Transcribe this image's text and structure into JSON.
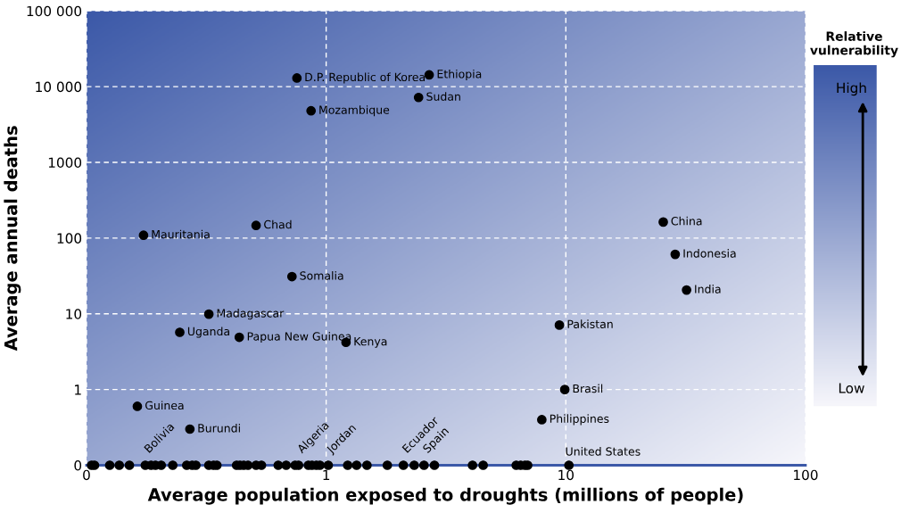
{
  "chart_data": {
    "type": "scatter",
    "xlabel": "Average population exposed to droughts (millions of people)",
    "ylabel": "Average annual deaths",
    "clabel": "Relative vulnerability",
    "log": "xy",
    "xlim": [
      0.1,
      100
    ],
    "ylim": [
      0.1,
      100000
    ],
    "xticks": [
      {
        "value": 0.1,
        "label": "0"
      },
      1,
      10,
      100
    ],
    "yticks": [
      {
        "value": 0.1,
        "label": "0"
      },
      1,
      10,
      100,
      1000,
      {
        "value": 10000,
        "label": "10 000"
      },
      {
        "value": 100000,
        "label": "100 000"
      }
    ],
    "grid": true,
    "marker": "circle",
    "series": [
      {
        "color": "#000000",
        "x": [
          0.755,
          2.69,
          2.43,
          0.865,
          25.5,
          28.6,
          31.9,
          0.51,
          0.173,
          0.72,
          0.324,
          0.245,
          0.434,
          1.21,
          9.4,
          9.9,
          7.94,
          0.163,
          0.27,
          10.3,
          0.105,
          0.108,
          0.125,
          0.137,
          0.151,
          0.176,
          0.186,
          0.194,
          0.205,
          0.229,
          0.262,
          0.276,
          0.286,
          0.324,
          0.339,
          0.35,
          0.423,
          0.437,
          0.453,
          0.472,
          0.51,
          0.537,
          0.631,
          0.681,
          0.742,
          0.767,
          0.843,
          0.873,
          0.91,
          0.942,
          1.02,
          1.23,
          1.34,
          1.48,
          1.8,
          2.1,
          2.33,
          2.56,
          2.83,
          4.08,
          4.52,
          6.21,
          6.48,
          6.75,
          6.93
        ],
        "values": [
          13000,
          14300,
          7200,
          4800,
          163,
          61,
          20.6,
          147,
          109,
          31,
          9.9,
          5.7,
          4.9,
          4.2,
          7.1,
          1.0,
          0.4,
          0.6,
          0.3,
          0.1,
          0.1,
          0.1,
          0.1,
          0.1,
          0.1,
          0.1,
          0.1,
          0.1,
          0.1,
          0.1,
          0.1,
          0.1,
          0.1,
          0.1,
          0.1,
          0.1,
          0.1,
          0.1,
          0.1,
          0.1,
          0.1,
          0.1,
          0.1,
          0.1,
          0.1,
          0.1,
          0.1,
          0.1,
          0.1,
          0.1,
          0.1,
          0.1,
          0.1,
          0.1,
          0.1,
          0.1,
          0.1,
          0.1,
          0.1,
          0.1,
          0.1,
          0.1,
          0.1,
          0.1,
          0.1
        ]
      }
    ],
    "annotations": [
      {
        "text": "D.P. Republic of Korea",
        "x": 0.755,
        "y": 13000
      },
      {
        "text": "Ethiopia",
        "x": 2.69,
        "y": 14300
      },
      {
        "text": "Sudan",
        "x": 2.43,
        "y": 7200
      },
      {
        "text": "Mozambique",
        "x": 0.865,
        "y": 4800
      },
      {
        "text": "China",
        "x": 25.5,
        "y": 163
      },
      {
        "text": "Indonesia",
        "x": 28.6,
        "y": 61
      },
      {
        "text": "India",
        "x": 31.9,
        "y": 20.6
      },
      {
        "text": "Chad",
        "x": 0.51,
        "y": 147
      },
      {
        "text": "Mauritania",
        "x": 0.173,
        "y": 109
      },
      {
        "text": "Somalia",
        "x": 0.72,
        "y": 31
      },
      {
        "text": "Madagascar",
        "x": 0.324,
        "y": 9.9
      },
      {
        "text": "Uganda",
        "x": 0.245,
        "y": 5.7
      },
      {
        "text": "Papua New Guinea",
        "x": 0.434,
        "y": 4.9
      },
      {
        "text": "Kenya",
        "x": 1.21,
        "y": 4.2
      },
      {
        "text": "Pakistan",
        "x": 9.4,
        "y": 7.1
      },
      {
        "text": "Brasil",
        "x": 9.9,
        "y": 1.0
      },
      {
        "text": "Philippines",
        "x": 7.94,
        "y": 0.4
      },
      {
        "text": "Guinea",
        "x": 0.163,
        "y": 0.6
      },
      {
        "text": "Burundi",
        "x": 0.27,
        "y": 0.3
      },
      {
        "text": "United States",
        "x": 10.3,
        "y": 0.1
      },
      {
        "text": "Bolivia",
        "x": 0.176,
        "y": 0.1
      },
      {
        "text": "Algeria",
        "x": 0.767,
        "y": 0.1
      },
      {
        "text": "Jordan",
        "x": 1.02,
        "y": 0.1
      },
      {
        "text": "Ecuador",
        "x": 2.1,
        "y": 0.1
      },
      {
        "text": "Spain",
        "x": 2.56,
        "y": 0.1
      },
      "High",
      "Low"
    ]
  }
}
